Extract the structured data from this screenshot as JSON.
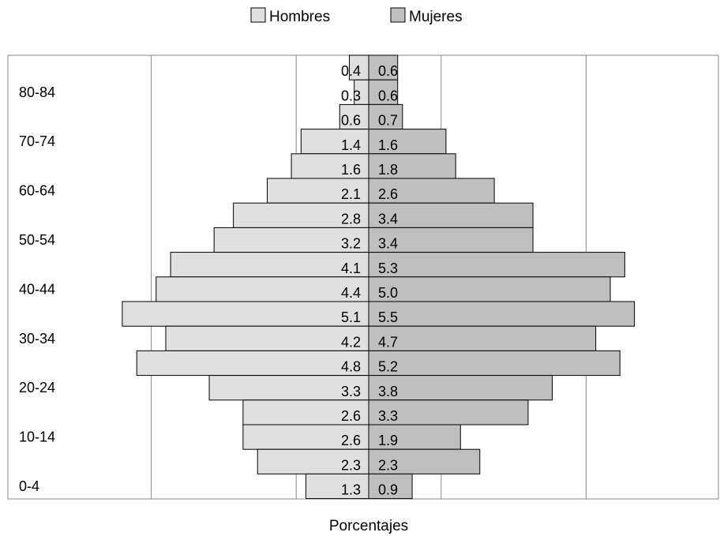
{
  "chart_data": {
    "type": "bar",
    "orientation": "horizontal",
    "subtype": "population-pyramid",
    "title": "",
    "xlabel": "Porcentajes",
    "ylabel": "",
    "legend_position": "top",
    "grid": true,
    "x_grid_range": [
      -7.5,
      7.5
    ],
    "age_tick_labels": [
      "80-84",
      "70-74",
      "60-64",
      "50-54",
      "40-44",
      "30-34",
      "20-24",
      "10-14",
      "0-4"
    ],
    "series": [
      {
        "name": "Hombres",
        "color": "#e0e0e0",
        "values": [
          0.4,
          0.3,
          0.6,
          1.4,
          1.6,
          2.1,
          2.8,
          3.2,
          4.1,
          4.4,
          5.1,
          4.2,
          4.8,
          3.3,
          2.6,
          2.6,
          2.3,
          1.3
        ]
      },
      {
        "name": "Mujeres",
        "color": "#bfbfbf",
        "values": [
          0.6,
          0.6,
          0.7,
          1.6,
          1.8,
          2.6,
          3.4,
          3.4,
          5.3,
          5.0,
          5.5,
          4.7,
          5.2,
          3.8,
          3.3,
          1.9,
          2.3,
          0.9
        ]
      }
    ],
    "hombres_labels": [
      "0.4",
      "0.3",
      "0.6",
      "1.4",
      "1.6",
      "2.1",
      "2.8",
      "3.2",
      "4.1",
      "4.4",
      "5.1",
      "4.2",
      "4.8",
      "3.3",
      "2.6",
      "2.6",
      "2.3",
      "1.3"
    ],
    "mujeres_labels": [
      "0.6",
      "0.6",
      "0.7",
      "1.6",
      "1.8",
      "2.6",
      "3.4",
      "3.4",
      "5.3",
      "5.0",
      "5.5",
      "4.7",
      "5.2",
      "3.8",
      "3.3",
      "1.9",
      "2.3",
      "0.9"
    ]
  }
}
